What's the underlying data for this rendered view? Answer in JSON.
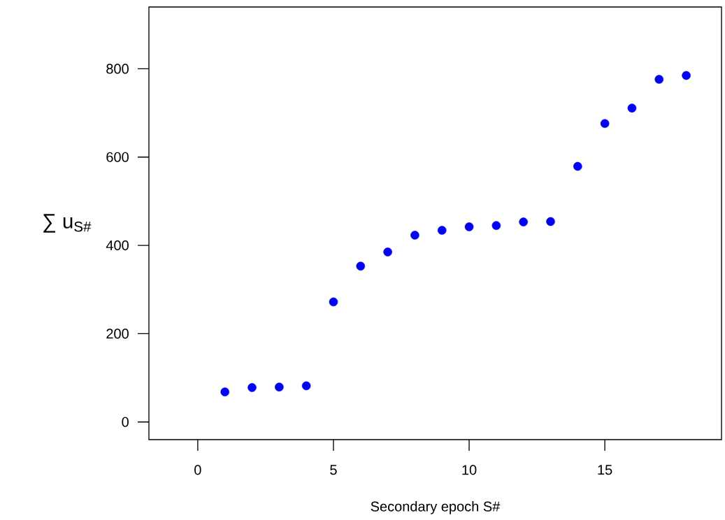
{
  "chart_data": {
    "type": "scatter",
    "xlabel": "Secondary epoch S#",
    "ylabel": "∑ u$_{S#}$",
    "x": [
      1,
      2,
      3,
      4,
      5,
      6,
      7,
      8,
      9,
      10,
      11,
      12,
      13,
      14,
      15,
      16,
      17,
      18
    ],
    "series": [
      {
        "color": "#0000ff",
        "values": [
          68,
          78,
          79,
          82,
          272,
          353,
          385,
          423,
          434,
          442,
          445,
          453,
          454,
          579,
          676,
          711,
          776,
          785
        ]
      }
    ],
    "xlim": [
      -1.8,
      19.3
    ],
    "ylim": [
      -40,
      940
    ],
    "xticks": [
      0,
      5,
      10,
      15
    ],
    "yticks": [
      0,
      200,
      400,
      600,
      800
    ],
    "marker": "circle",
    "grid": false
  }
}
